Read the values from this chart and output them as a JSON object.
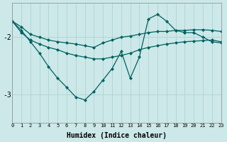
{
  "x": [
    0,
    1,
    2,
    3,
    4,
    5,
    6,
    7,
    8,
    9,
    10,
    11,
    12,
    13,
    14,
    15,
    16,
    17,
    18,
    19,
    20,
    21,
    22,
    23
  ],
  "line_wavy": [
    -1.72,
    -1.88,
    -2.08,
    -2.28,
    -2.52,
    -2.72,
    -2.88,
    -3.05,
    -3.1,
    -2.95,
    -2.75,
    -2.55,
    -2.25,
    -2.72,
    -2.35,
    -1.68,
    -1.6,
    -1.72,
    -1.88,
    -1.92,
    -1.92,
    -2.0,
    -2.08,
    -2.1
  ],
  "line_upper": [
    -1.72,
    -1.82,
    -1.95,
    -2.0,
    -2.05,
    -2.08,
    -2.1,
    -2.12,
    -2.15,
    -2.18,
    -2.1,
    -2.05,
    -2.0,
    -1.98,
    -1.95,
    -1.92,
    -1.9,
    -1.9,
    -1.88,
    -1.88,
    -1.87,
    -1.87,
    -1.88,
    -1.9
  ],
  "line_lower": [
    -1.72,
    -1.92,
    -2.05,
    -2.12,
    -2.18,
    -2.22,
    -2.28,
    -2.32,
    -2.35,
    -2.38,
    -2.38,
    -2.35,
    -2.32,
    -2.28,
    -2.22,
    -2.18,
    -2.15,
    -2.12,
    -2.1,
    -2.08,
    -2.07,
    -2.06,
    -2.05,
    -2.08
  ],
  "bg_color": "#cce8e8",
  "line_color": "#006060",
  "grid_color": "#aad0d0",
  "xlabel": "Humidex (Indice chaleur)",
  "xlim": [
    0,
    23
  ],
  "ylim": [
    -3.5,
    -1.4
  ],
  "yticks": [
    -3,
    -2
  ],
  "xticks": [
    0,
    1,
    2,
    3,
    4,
    5,
    6,
    7,
    8,
    9,
    10,
    11,
    12,
    13,
    14,
    15,
    16,
    17,
    18,
    19,
    20,
    21,
    22,
    23
  ]
}
